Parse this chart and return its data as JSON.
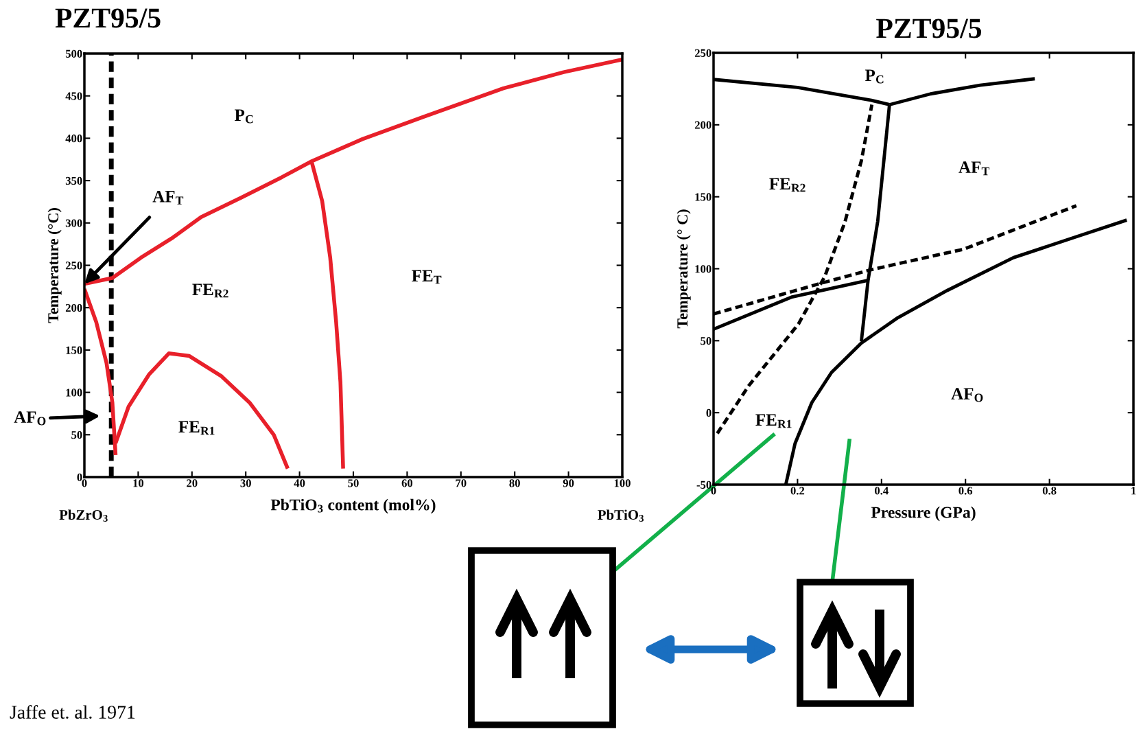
{
  "chart_data": [
    {
      "type": "line",
      "title": "PZT95/5",
      "xlabel": "PbTiO$_{3}$ content (mol%)",
      "ylabel": "Temperature (°C)",
      "xlim": [
        0,
        100
      ],
      "ylim": [
        0,
        500
      ],
      "xticks": [
        0,
        10,
        20,
        30,
        40,
        50,
        60,
        70,
        80,
        90,
        100
      ],
      "yticks": [
        0,
        50,
        100,
        150,
        200,
        250,
        300,
        350,
        400,
        450,
        500
      ],
      "series": [
        {
          "type": "line",
          "color": "#e8202a",
          "line_style": "solid",
          "x": [
            0,
            5.2,
            10.5,
            16.5,
            21.7,
            29.2,
            36.7,
            42.3,
            51.7,
            62.9,
            77.9,
            89.1,
            100
          ],
          "values": [
            228,
            235,
            259,
            283,
            307,
            330,
            354,
            373,
            399,
            425,
            459,
            478,
            493
          ]
        },
        {
          "type": "line",
          "color": "#e8202a",
          "line_style": "solid",
          "x": [
            42.3,
            44.2,
            45.7,
            46.8,
            47.6,
            48.1
          ],
          "values": [
            371,
            326,
            259,
            183,
            112,
            10
          ]
        },
        {
          "type": "line",
          "color": "#e8202a",
          "line_style": "solid",
          "x": [
            0,
            2.2,
            4.1,
            5.2,
            5.8
          ],
          "values": [
            222,
            183,
            135,
            88,
            26
          ]
        },
        {
          "type": "line",
          "color": "#e8202a",
          "line_style": "solid",
          "x": [
            5.8,
            8.2,
            12,
            15.7,
            19.5,
            25.5,
            30.7,
            35.2,
            37.8
          ],
          "values": [
            40,
            83,
            121,
            146,
            143,
            119,
            88,
            50,
            10
          ]
        }
      ],
      "ref_lines": [
        {
          "axis": "x",
          "value": 5,
          "color": "#000000",
          "line_style": "dashed"
        }
      ],
      "annotations": [
        "P$_{C}$",
        "FE$_{R2}$",
        "FE$_{T}$",
        "FE$_{R1}$",
        {
          "text": "AF$_{T}$",
          "x": 0,
          "y": 228
        },
        "AF$_{O}$",
        "PbZrO$_{3}$",
        "PbTiO$_{3}$",
        "Jaffe et. al. 1971"
      ]
    },
    {
      "type": "line",
      "title": "PZT95/5",
      "xlabel": "Pressure (GPa)",
      "ylabel": "Temperature (° C)",
      "xlim": [
        0,
        1
      ],
      "ylim": [
        -50,
        250
      ],
      "xticks": [
        0,
        0.2,
        0.4,
        0.6,
        0.8,
        1
      ],
      "yticks": [
        -50,
        0,
        50,
        100,
        150,
        200,
        250
      ],
      "series": [
        {
          "type": "line",
          "color": "#000000",
          "line_style": "solid",
          "x": [
            0,
            0.2,
            0.376,
            0.419
          ],
          "values": [
            231.5,
            226,
            217,
            214
          ]
        },
        {
          "type": "line",
          "color": "#000000",
          "line_style": "solid",
          "x": [
            0.419,
            0.517,
            0.635,
            0.765
          ],
          "values": [
            214,
            221.5,
            227.5,
            232
          ]
        },
        {
          "type": "line",
          "color": "#000000",
          "line_style": "solid",
          "x": [
            0.419,
            0.391,
            0.368,
            0.352
          ],
          "values": [
            214,
            133,
            92,
            49.6
          ]
        },
        {
          "type": "line",
          "color": "#000000",
          "line_style": "solid",
          "x": [
            0,
            0.187,
            0.368
          ],
          "values": [
            58,
            80.4,
            92
          ]
        },
        {
          "type": "line",
          "color": "#000000",
          "line_style": "solid",
          "x": [
            0.172,
            0.194,
            0.234,
            0.281,
            0.352,
            0.439,
            0.557,
            0.714,
            0.872,
            0.984
          ],
          "values": [
            -50,
            -21.5,
            7,
            28,
            48.4,
            66,
            85,
            107.7,
            123,
            133.8
          ]
        },
        {
          "type": "line",
          "color": "#000000",
          "line_style": "dashed",
          "x": [
            0,
            0.257,
            0.376,
            0.596,
            0.864
          ],
          "values": [
            68.6,
            90,
            99.4,
            113.6,
            143.8
          ]
        },
        {
          "type": "line",
          "color": "#000000",
          "line_style": "dashed",
          "x": [
            0.009,
            0.084,
            0.202,
            0.265,
            0.313,
            0.352,
            0.377
          ],
          "values": [
            -14.4,
            18.8,
            61.5,
            94.7,
            132.6,
            175,
            214
          ]
        }
      ],
      "annotations": [
        "P$_{C}$",
        "FE$_{R2}$",
        "AF$_{T}$",
        "AF$_{O}$",
        "FE$_{R1}$"
      ]
    }
  ]
}
